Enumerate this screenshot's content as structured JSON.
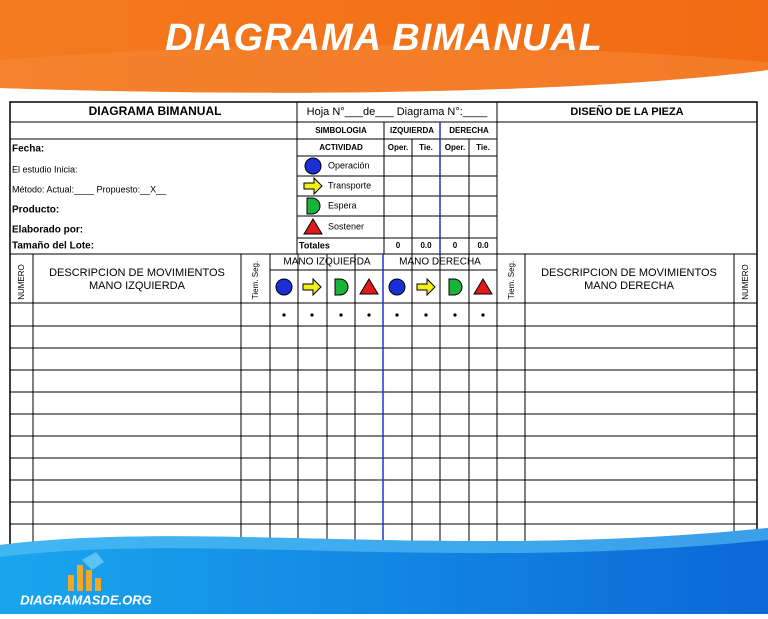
{
  "banner": {
    "title": "DIAGRAMA BIMANUAL"
  },
  "form": {
    "header": {
      "title": "DIAGRAMA BIMANUAL",
      "sheet": "Hoja N°___de___ Diagrama N°:____",
      "piece": "DISEÑO DE LA PIEZA"
    },
    "fields": [
      "Fecha:",
      "El estudio Inicia:",
      "Método: Actual:____   Propuesto:__X__",
      "Producto:",
      "Elaborado por:",
      "Tamaño del Lote:"
    ],
    "symbology": {
      "title": "SIMBOLOGIA",
      "activity": "ACTIVIDAD",
      "left": "IZQUIERDA",
      "right": "DERECHA",
      "oper": "Oper.",
      "time": "Tie.",
      "items": [
        "Operación",
        "Transporte",
        "Espera",
        "Sostener"
      ],
      "totals_label": "Totales",
      "totals": [
        "0",
        "0.0",
        "0",
        "0.0"
      ]
    },
    "columns": {
      "number": "NUMERO",
      "left_desc": [
        "DESCRIPCION DE MOVIMIENTOS",
        "MANO IZQUIERDA"
      ],
      "time": "Tiem. Seg.",
      "left_hand": "MANO IZQUIERDA",
      "right_hand": "MANO DERECHA",
      "right_desc": [
        "DESCRIPCION DE MOVIMIENTOS",
        "MANO DERECHA"
      ]
    }
  },
  "footer": {
    "site": "DIAGRAMASDE.ORG"
  }
}
